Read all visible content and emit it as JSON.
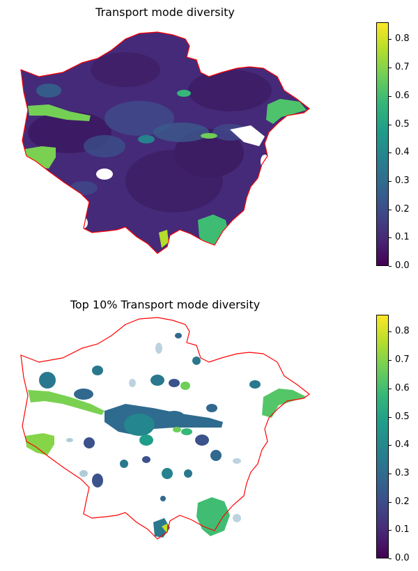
{
  "panels": [
    {
      "title": "Transport mode diversity"
    },
    {
      "title": "Top 10% Transport mode diversity"
    }
  ],
  "colorbar": {
    "ticks": [
      "0.0",
      "0.1",
      "0.2",
      "0.3",
      "0.4",
      "0.5",
      "0.6",
      "0.7",
      "0.8"
    ],
    "range": [
      0.0,
      0.86
    ],
    "colormap": "viridis"
  },
  "colors": {
    "boundary": "#ff0000",
    "low": "#440154",
    "high": "#fde725"
  }
}
